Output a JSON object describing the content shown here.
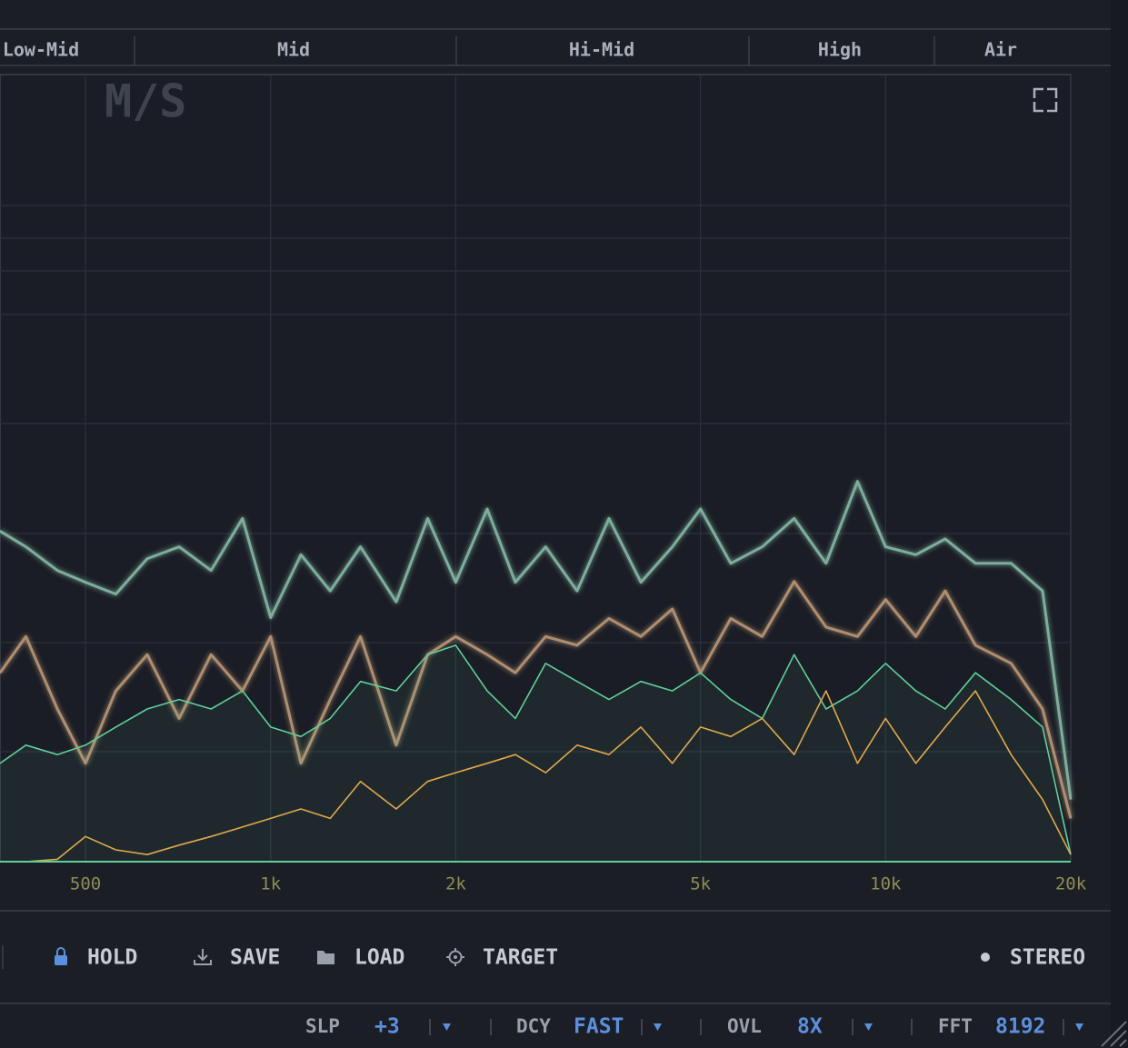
{
  "header": {
    "bands": [
      "Low-Mid",
      "Mid",
      "Hi-Mid",
      "High",
      "Air"
    ]
  },
  "chart_data": {
    "type": "line",
    "annotation": "M/S",
    "log_x": true,
    "xlim": [
      363,
      20000
    ],
    "xticks": [
      {
        "value": 500,
        "label": "500"
      },
      {
        "value": 1000,
        "label": "1k"
      },
      {
        "value": 2000,
        "label": "2k"
      },
      {
        "value": 5000,
        "label": "5k"
      },
      {
        "value": 10000,
        "label": "10k"
      },
      {
        "value": 20000,
        "label": "20k"
      }
    ],
    "ylim": [
      0,
      100
    ],
    "grid": true,
    "x": [
      363,
      400,
      450,
      500,
      560,
      630,
      710,
      800,
      900,
      1000,
      1120,
      1250,
      1400,
      1600,
      1800,
      2000,
      2250,
      2500,
      2800,
      3150,
      3550,
      4000,
      4500,
      5000,
      5600,
      6300,
      7100,
      8000,
      9000,
      10000,
      11200,
      12500,
      14000,
      16000,
      18000,
      20000
    ],
    "series": [
      {
        "color": "#8fc7b0",
        "values": [
          42,
          40,
          37,
          35.5,
          34,
          38.5,
          40,
          37,
          43.6,
          31,
          39,
          34.4,
          40,
          33,
          43.6,
          35.5,
          44.8,
          35.5,
          40,
          34.4,
          43.6,
          35.5,
          40,
          44.8,
          37.9,
          40,
          43.6,
          37.9,
          48.3,
          40,
          39,
          41,
          37.9,
          37.9,
          34.4,
          7.9
        ]
      },
      {
        "color": "#c9a27e",
        "values": [
          24,
          28.6,
          19.4,
          12.5,
          21.7,
          26.3,
          18.2,
          26.3,
          21.7,
          28.6,
          12.5,
          20.6,
          28.6,
          14.8,
          26.3,
          28.6,
          26.3,
          24,
          28.6,
          27.5,
          30.9,
          28.6,
          32.1,
          24,
          30.9,
          28.6,
          35.6,
          29.8,
          28.6,
          33.3,
          28.6,
          34.4,
          27.5,
          25.2,
          19.4,
          5.5
        ]
      },
      {
        "color": "#5fcf9a",
        "fill": true,
        "values": [
          12.5,
          14.8,
          13.6,
          14.8,
          17.1,
          19.4,
          20.6,
          19.4,
          21.7,
          17.1,
          15.9,
          18.2,
          22.9,
          21.7,
          26.3,
          27.5,
          21.7,
          18.2,
          25.2,
          22.9,
          20.6,
          22.9,
          21.7,
          24,
          20.6,
          18.2,
          26.3,
          19.4,
          21.7,
          25.2,
          21.7,
          19.4,
          24,
          20.6,
          17.1,
          0.9
        ]
      },
      {
        "color": "#e0a84a",
        "values": [
          0,
          0,
          0.3,
          3.2,
          1.5,
          0.9,
          2.1,
          3.2,
          4.4,
          5.5,
          6.7,
          5.5,
          10.2,
          6.7,
          10.2,
          11.3,
          12.5,
          13.6,
          11.3,
          14.8,
          13.6,
          17.1,
          12.5,
          17.1,
          15.9,
          18.2,
          13.6,
          21.7,
          12.5,
          18.2,
          12.5,
          17.1,
          21.7,
          13.6,
          7.9,
          0.9
        ]
      }
    ]
  },
  "toolbar": {
    "hold": "HOLD",
    "save": "SAVE",
    "load": "LOAD",
    "target": "TARGET",
    "stereo": "STEREO"
  },
  "footer": {
    "slp_label": "SLP",
    "slp_value": "+3",
    "dcy_label": "DCY",
    "dcy_value": "FAST",
    "ovl_label": "OVL",
    "ovl_value": "8X",
    "fft_label": "FFT",
    "fft_value": "8192"
  }
}
